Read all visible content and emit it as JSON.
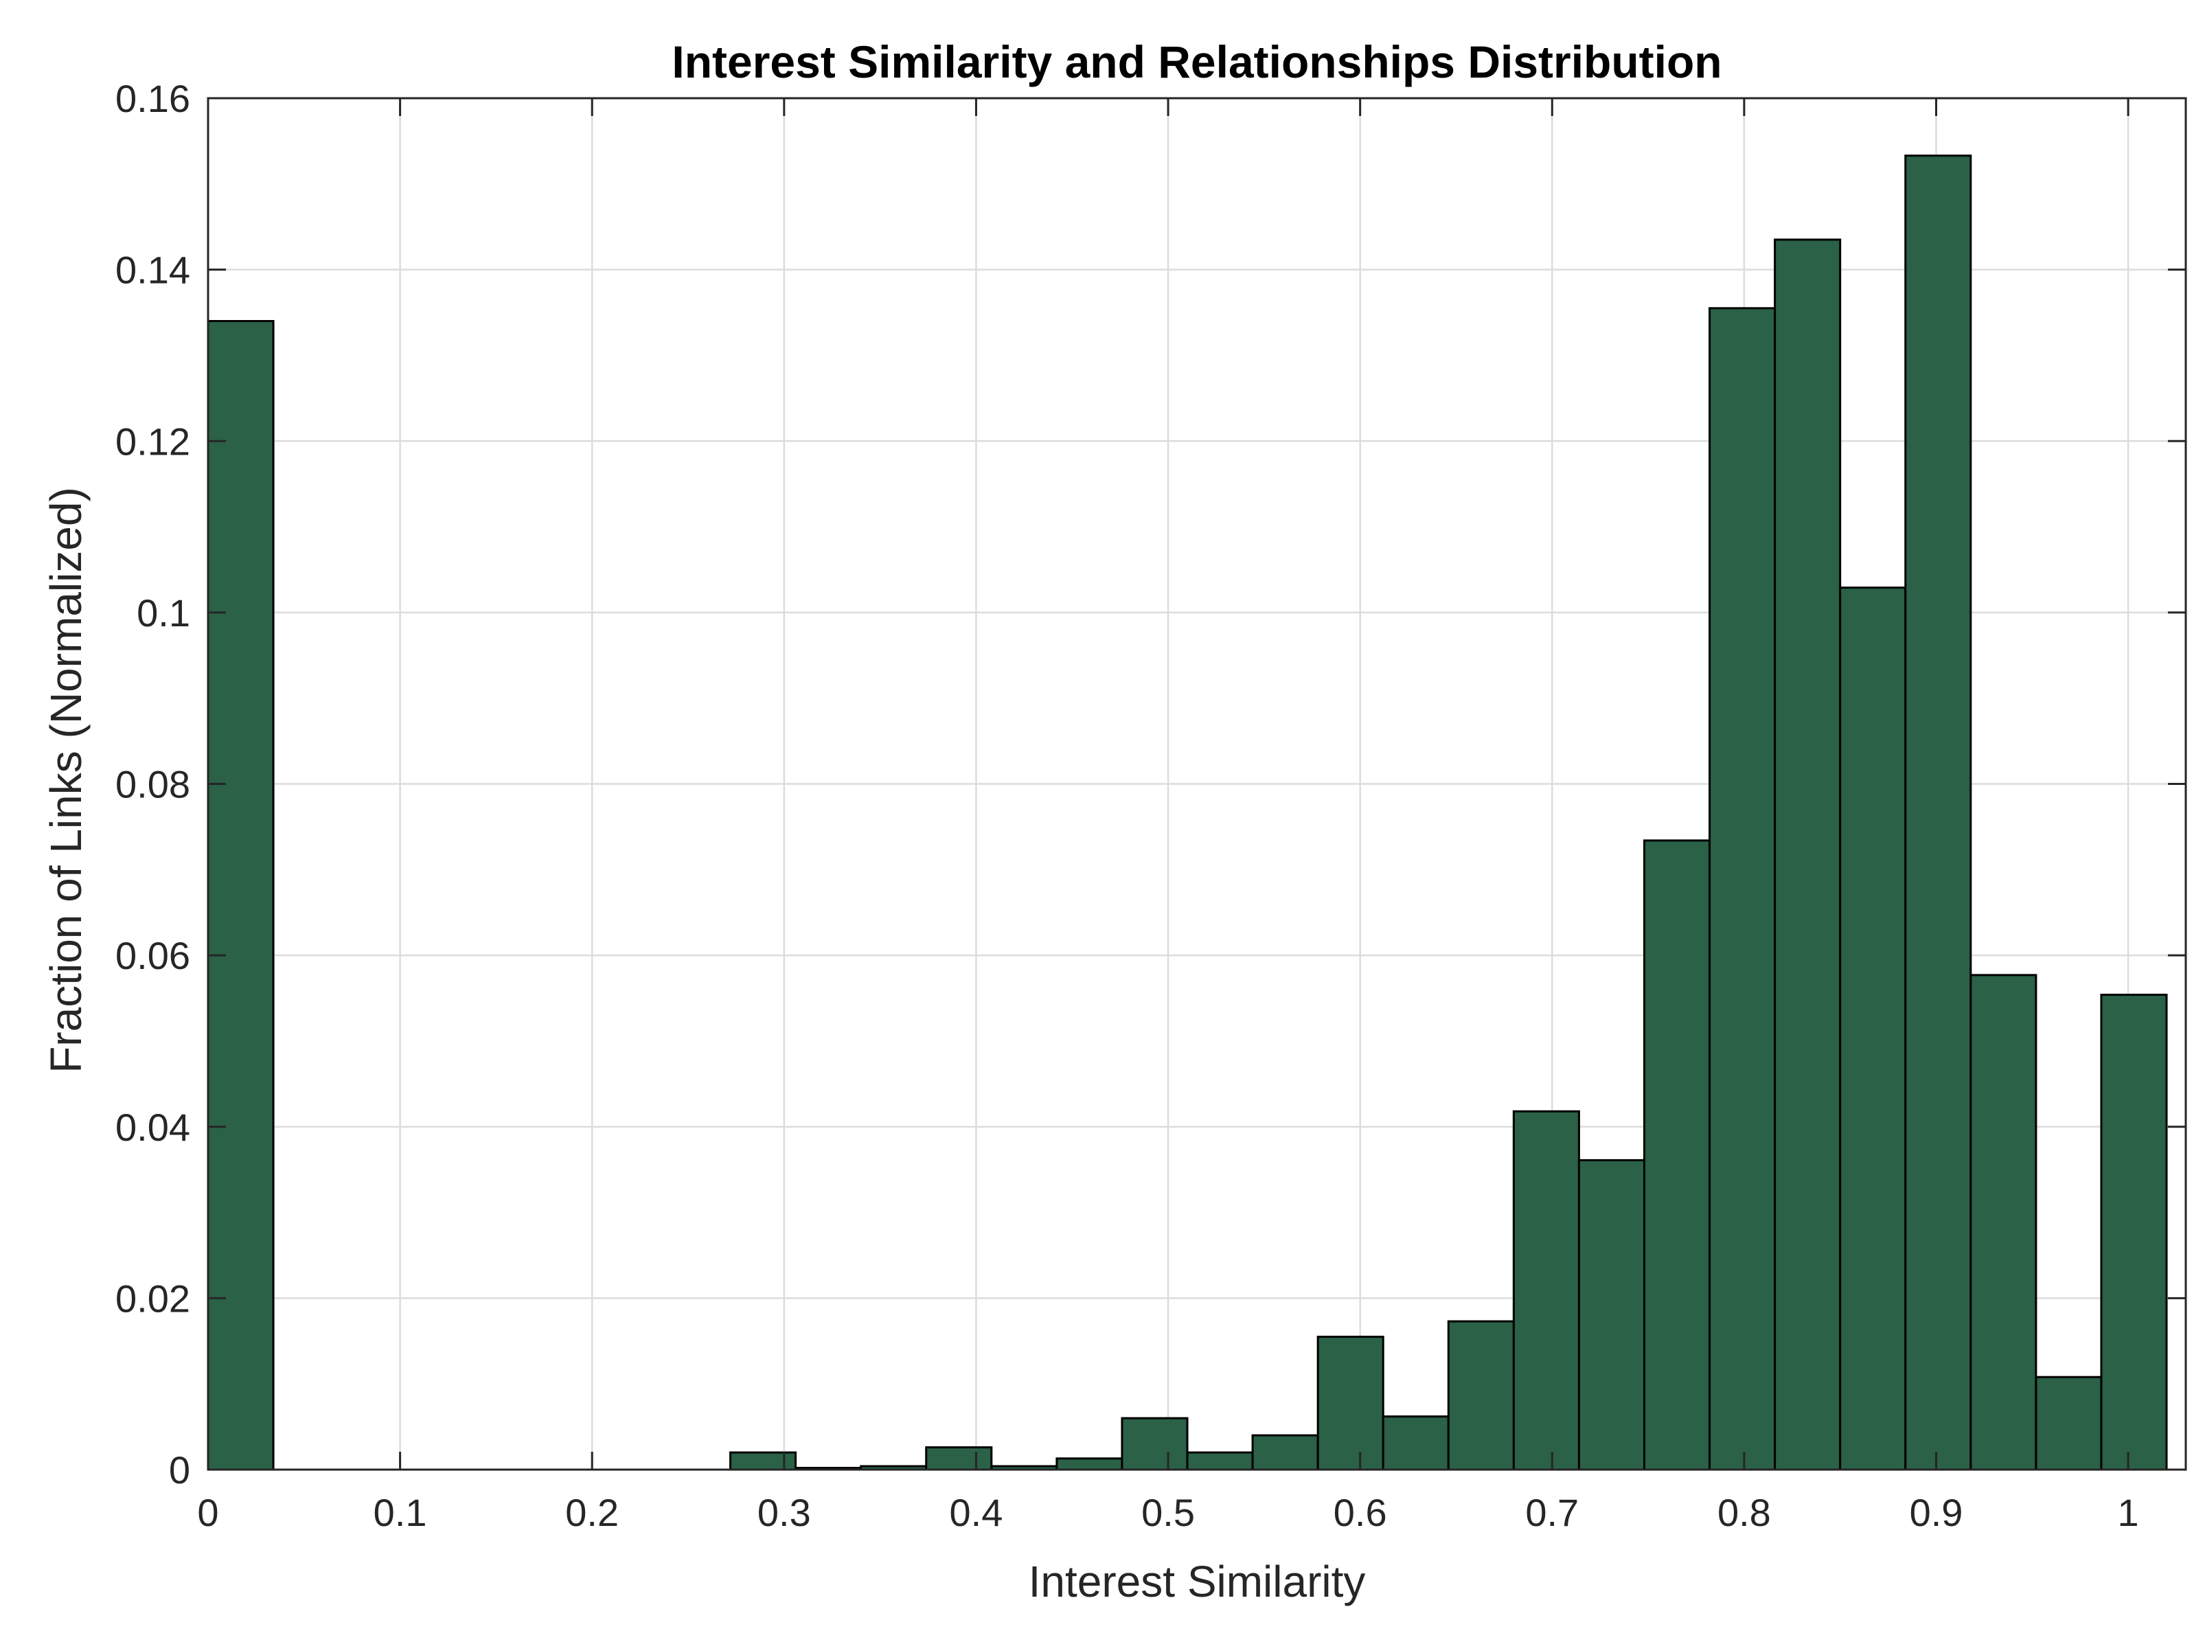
{
  "chart_data": {
    "type": "bar",
    "title": "Interest Similarity and Relationships Distribution",
    "xlabel": "Interest Similarity",
    "ylabel": "Fraction of Links (Normalized)",
    "xlim": [
      0,
      1.03
    ],
    "ylim": [
      0,
      0.16
    ],
    "grid": true,
    "bar_color": "#2a6147",
    "bar_edge_color": "#000000",
    "grid_color": "#dcdcdc",
    "bin_width": 0.034,
    "x_ticks": [
      "0",
      "0.1",
      "0.2",
      "0.3",
      "0.4",
      "0.5",
      "0.6",
      "0.7",
      "0.8",
      "0.9",
      "1"
    ],
    "x_tick_values": [
      0,
      0.1,
      0.2,
      0.3,
      0.4,
      0.5,
      0.6,
      0.7,
      0.8,
      0.9,
      1
    ],
    "y_ticks": [
      "0",
      "0.02",
      "0.04",
      "0.06",
      "0.08",
      "0.1",
      "0.12",
      "0.14",
      "0.16"
    ],
    "y_tick_values": [
      0,
      0.02,
      0.04,
      0.06,
      0.08,
      0.1,
      0.12,
      0.14,
      0.16
    ],
    "bins": [
      {
        "x0": 0.0,
        "value": 0.134
      },
      {
        "x0": 0.272,
        "value": 0.002
      },
      {
        "x0": 0.306,
        "value": 0.0002
      },
      {
        "x0": 0.34,
        "value": 0.0004
      },
      {
        "x0": 0.374,
        "value": 0.0026
      },
      {
        "x0": 0.408,
        "value": 0.0004
      },
      {
        "x0": 0.442,
        "value": 0.0013
      },
      {
        "x0": 0.476,
        "value": 0.006
      },
      {
        "x0": 0.51,
        "value": 0.002
      },
      {
        "x0": 0.544,
        "value": 0.004
      },
      {
        "x0": 0.578,
        "value": 0.0155
      },
      {
        "x0": 0.612,
        "value": 0.0062
      },
      {
        "x0": 0.646,
        "value": 0.0173
      },
      {
        "x0": 0.68,
        "value": 0.0418
      },
      {
        "x0": 0.714,
        "value": 0.0361
      },
      {
        "x0": 0.748,
        "value": 0.0734
      },
      {
        "x0": 0.782,
        "value": 0.1355
      },
      {
        "x0": 0.816,
        "value": 0.1435
      },
      {
        "x0": 0.85,
        "value": 0.1029
      },
      {
        "x0": 0.884,
        "value": 0.1533
      },
      {
        "x0": 0.918,
        "value": 0.0577
      },
      {
        "x0": 0.952,
        "value": 0.0108
      },
      {
        "x0": 0.986,
        "value": 0.0554
      }
    ]
  }
}
